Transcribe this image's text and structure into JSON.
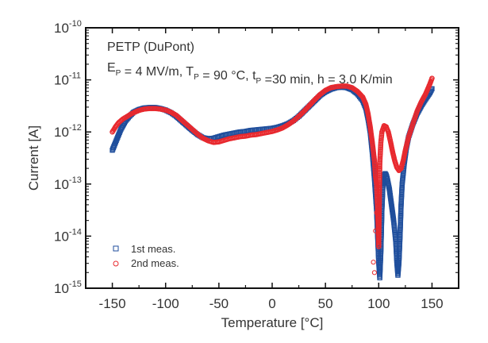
{
  "chart_data": {
    "type": "scatter",
    "title": "",
    "xlabel": "Temperature [°C]",
    "ylabel": "Current [A]",
    "xlim": [
      -175,
      175
    ],
    "ylim": [
      1e-15,
      1e-10
    ],
    "yscale": "log",
    "x_ticks": [
      -150,
      -100,
      -50,
      0,
      50,
      100,
      150
    ],
    "x_tick_labels": [
      "-150",
      "-100",
      "-50",
      "0",
      "50",
      "100",
      "150"
    ],
    "y_ticks_exp": [
      -15,
      -14,
      -13,
      -12,
      -11,
      -10
    ],
    "y_tick_base": "10",
    "grid": false,
    "legend_position": "bottom-left",
    "annotations": {
      "line1": "PETP (DuPont)",
      "line2_parts": [
        {
          "text": "E",
          "sub": "P"
        },
        {
          "text": " = 4 MV/m, T",
          "sub": "P"
        },
        {
          "text": " = 90 °C, t",
          "sub": "P"
        },
        {
          "text": " =30 min, h = 3.0 K/min",
          "sub": ""
        }
      ]
    },
    "series": [
      {
        "name": "1st meas.",
        "marker": "square",
        "color": "#1f4e9c",
        "points_log10": [
          [
            -150,
            -12.35
          ],
          [
            -148,
            -12.25
          ],
          [
            -145,
            -12.1
          ],
          [
            -142,
            -11.95
          ],
          [
            -138,
            -11.8
          ],
          [
            -134,
            -11.7
          ],
          [
            -130,
            -11.62
          ],
          [
            -125,
            -11.57
          ],
          [
            -120,
            -11.54
          ],
          [
            -115,
            -11.53
          ],
          [
            -110,
            -11.53
          ],
          [
            -105,
            -11.55
          ],
          [
            -100,
            -11.58
          ],
          [
            -95,
            -11.63
          ],
          [
            -90,
            -11.7
          ],
          [
            -85,
            -11.79
          ],
          [
            -80,
            -11.88
          ],
          [
            -75,
            -11.97
          ],
          [
            -70,
            -12.05
          ],
          [
            -65,
            -12.11
          ],
          [
            -60,
            -12.13
          ],
          [
            -55,
            -12.12
          ],
          [
            -50,
            -12.09
          ],
          [
            -45,
            -12.06
          ],
          [
            -40,
            -12.04
          ],
          [
            -35,
            -12.02
          ],
          [
            -30,
            -12.0
          ],
          [
            -25,
            -11.99
          ],
          [
            -20,
            -11.97
          ],
          [
            -15,
            -11.96
          ],
          [
            -10,
            -11.95
          ],
          [
            -5,
            -11.94
          ],
          [
            0,
            -11.93
          ],
          [
            5,
            -11.91
          ],
          [
            10,
            -11.88
          ],
          [
            15,
            -11.84
          ],
          [
            20,
            -11.78
          ],
          [
            25,
            -11.7
          ],
          [
            30,
            -11.6
          ],
          [
            35,
            -11.5
          ],
          [
            40,
            -11.4
          ],
          [
            45,
            -11.3
          ],
          [
            50,
            -11.23
          ],
          [
            55,
            -11.18
          ],
          [
            60,
            -11.15
          ],
          [
            65,
            -11.14
          ],
          [
            70,
            -11.15
          ],
          [
            75,
            -11.19
          ],
          [
            80,
            -11.27
          ],
          [
            85,
            -11.4
          ],
          [
            88,
            -11.55
          ],
          [
            90,
            -11.75
          ],
          [
            92,
            -12.0
          ],
          [
            94,
            -12.4
          ],
          [
            96,
            -12.9
          ],
          [
            98,
            -13.5
          ],
          [
            99,
            -14.0
          ],
          [
            100,
            -14.5
          ],
          [
            101,
            -14.8
          ],
          [
            102,
            -14.3
          ],
          [
            103,
            -13.5
          ],
          [
            104,
            -13.0
          ],
          [
            105,
            -12.82
          ],
          [
            106,
            -12.8
          ],
          [
            107,
            -12.83
          ],
          [
            108,
            -12.9
          ],
          [
            110,
            -13.1
          ],
          [
            112,
            -13.4
          ],
          [
            114,
            -13.7
          ],
          [
            116,
            -14.1
          ],
          [
            117,
            -14.5
          ],
          [
            118,
            -14.75
          ],
          [
            119,
            -14.5
          ],
          [
            120,
            -14.0
          ],
          [
            121,
            -13.4
          ],
          [
            122,
            -13.0
          ],
          [
            124,
            -12.6
          ],
          [
            126,
            -12.3
          ],
          [
            128,
            -12.1
          ],
          [
            132,
            -11.85
          ],
          [
            136,
            -11.65
          ],
          [
            140,
            -11.5
          ],
          [
            144,
            -11.37
          ],
          [
            148,
            -11.25
          ],
          [
            150,
            -11.17
          ]
        ]
      },
      {
        "name": "2nd meas.",
        "marker": "circle",
        "color": "#e8292e",
        "points_log10": [
          [
            -150,
            -12.0
          ],
          [
            -147,
            -11.9
          ],
          [
            -144,
            -11.82
          ],
          [
            -140,
            -11.75
          ],
          [
            -136,
            -11.7
          ],
          [
            -132,
            -11.65
          ],
          [
            -128,
            -11.61
          ],
          [
            -124,
            -11.58
          ],
          [
            -120,
            -11.56
          ],
          [
            -115,
            -11.55
          ],
          [
            -110,
            -11.55
          ],
          [
            -105,
            -11.56
          ],
          [
            -100,
            -11.58
          ],
          [
            -95,
            -11.62
          ],
          [
            -90,
            -11.68
          ],
          [
            -85,
            -11.77
          ],
          [
            -80,
            -11.86
          ],
          [
            -75,
            -11.95
          ],
          [
            -70,
            -12.04
          ],
          [
            -65,
            -12.12
          ],
          [
            -60,
            -12.17
          ],
          [
            -55,
            -12.2
          ],
          [
            -50,
            -12.19
          ],
          [
            -45,
            -12.16
          ],
          [
            -40,
            -12.13
          ],
          [
            -35,
            -12.11
          ],
          [
            -30,
            -12.09
          ],
          [
            -25,
            -12.08
          ],
          [
            -20,
            -12.06
          ],
          [
            -15,
            -12.05
          ],
          [
            -10,
            -12.03
          ],
          [
            -5,
            -12.01
          ],
          [
            0,
            -11.99
          ],
          [
            5,
            -11.96
          ],
          [
            10,
            -11.92
          ],
          [
            15,
            -11.86
          ],
          [
            20,
            -11.79
          ],
          [
            25,
            -11.7
          ],
          [
            30,
            -11.6
          ],
          [
            35,
            -11.49
          ],
          [
            40,
            -11.38
          ],
          [
            45,
            -11.28
          ],
          [
            50,
            -11.2
          ],
          [
            55,
            -11.15
          ],
          [
            60,
            -11.13
          ],
          [
            65,
            -11.12
          ],
          [
            70,
            -11.12
          ],
          [
            75,
            -11.15
          ],
          [
            80,
            -11.22
          ],
          [
            85,
            -11.33
          ],
          [
            88,
            -11.47
          ],
          [
            90,
            -11.65
          ],
          [
            92,
            -11.9
          ],
          [
            94,
            -12.2
          ],
          [
            96,
            -12.55
          ],
          [
            97,
            -12.85
          ],
          [
            98,
            -13.0
          ],
          [
            99,
            -13.5
          ],
          [
            100,
            -14.2
          ],
          [
            101,
            -12.6
          ],
          [
            102,
            -12.2
          ],
          [
            103,
            -12.0
          ],
          [
            105,
            -11.88
          ],
          [
            107,
            -11.9
          ],
          [
            109,
            -12.0
          ],
          [
            111,
            -12.18
          ],
          [
            113,
            -12.38
          ],
          [
            115,
            -12.55
          ],
          [
            117,
            -12.68
          ],
          [
            119,
            -12.74
          ],
          [
            121,
            -12.7
          ],
          [
            123,
            -12.55
          ],
          [
            125,
            -12.35
          ],
          [
            128,
            -12.1
          ],
          [
            132,
            -11.85
          ],
          [
            136,
            -11.6
          ],
          [
            140,
            -11.42
          ],
          [
            144,
            -11.27
          ],
          [
            148,
            -11.08
          ],
          [
            150,
            -10.97
          ]
        ],
        "outliers_log10": [
          [
            95,
            -14.5
          ],
          [
            96,
            -14.7
          ],
          [
            98,
            -13.55
          ],
          [
            97,
            -13.9
          ]
        ]
      }
    ]
  }
}
